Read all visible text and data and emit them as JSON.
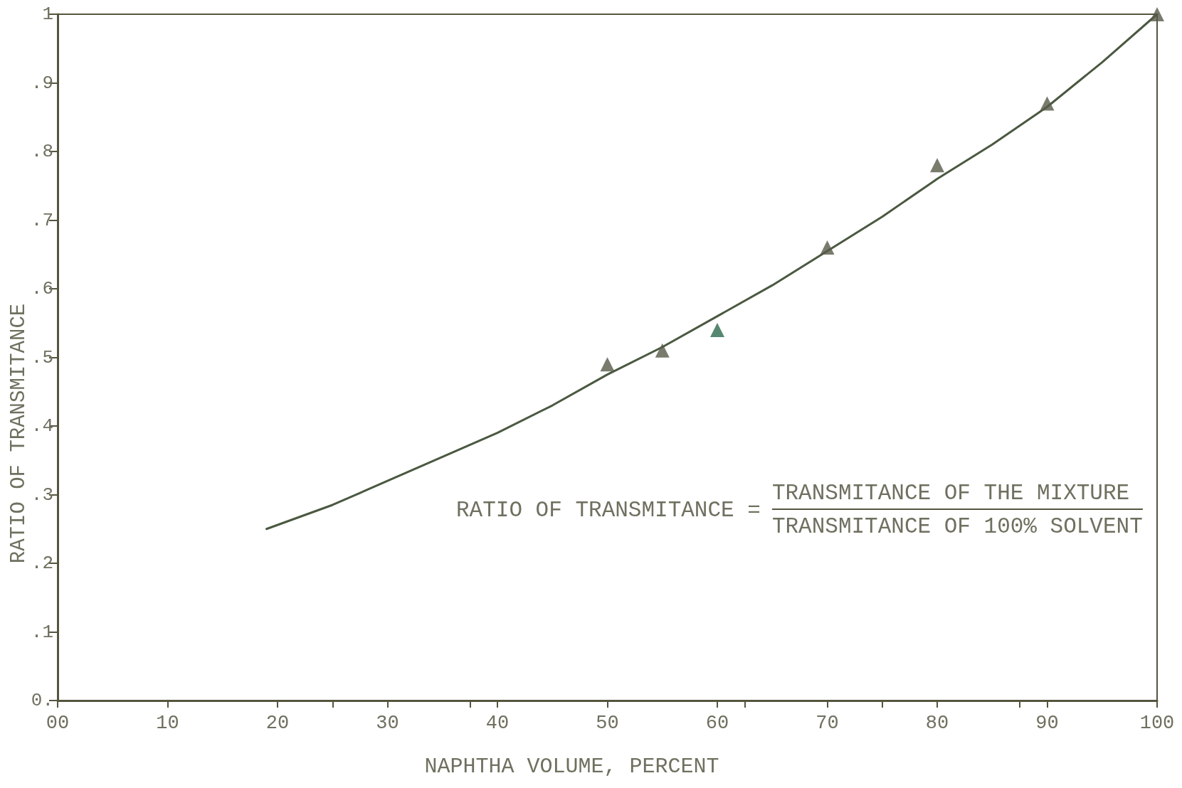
{
  "chart_data": {
    "type": "scatter",
    "xlabel": "NAPHTHA VOLUME, PERCENT",
    "ylabel": "RATIO OF TRANSMITANCE",
    "annotations": [
      "RATIO OF TRANSMITANCE =",
      "TRANSMITANCE OF THE MIXTURE",
      "TRANSMITANCE OF 100% SOLVENT"
    ],
    "series": [
      {
        "type": "line",
        "x": [
          19,
          25,
          30,
          35,
          40,
          45,
          50,
          55,
          60,
          65,
          70,
          75,
          80,
          85,
          90,
          95,
          100
        ],
        "values": [
          0.25,
          0.285,
          0.32,
          0.355,
          0.39,
          0.43,
          0.475,
          0.515,
          0.56,
          0.605,
          0.655,
          0.705,
          0.76,
          0.81,
          0.865,
          0.93,
          1.0
        ],
        "color": "#4a5840",
        "marker": "none",
        "line_style": "solid"
      },
      {
        "x": [
          50,
          55,
          60,
          70,
          80,
          90,
          100
        ],
        "values": [
          0.49,
          0.51,
          0.54,
          0.66,
          0.78,
          0.87,
          1.0
        ],
        "color": "#585a48",
        "colors": [
          "#585a48",
          "#585a48",
          "#2c6a4e",
          "#585a48",
          "#585a48",
          "#585a48",
          "#585a48"
        ],
        "marker": "triangle"
      }
    ],
    "xlim": [
      0,
      100
    ],
    "ylim": [
      0,
      1
    ],
    "xticks": [
      {
        "value": 0,
        "label": "00"
      },
      10,
      20,
      {
        "value": 25,
        "label": null
      },
      30,
      {
        "value": 37.5,
        "label": null
      },
      40,
      50,
      60,
      {
        "value": 62.5,
        "label": null
      },
      70,
      {
        "value": 75,
        "label": null
      },
      80,
      {
        "value": 87.5,
        "label": null
      },
      90,
      100
    ],
    "yticks": [
      {
        "value": 0,
        "label": "0."
      },
      {
        "value": 0.1,
        "label": ".1"
      },
      {
        "value": 0.2,
        "label": ".2"
      },
      {
        "value": 0.3,
        "label": ".3"
      },
      {
        "value": 0.4,
        "label": ".4"
      },
      {
        "value": 0.5,
        "label": ".5"
      },
      {
        "value": 0.6,
        "label": ".6"
      },
      {
        "value": 0.7,
        "label": ".7"
      },
      {
        "value": 0.8,
        "label": ".8"
      },
      {
        "value": 0.9,
        "label": ".9"
      },
      1
    ],
    "grid": false
  }
}
